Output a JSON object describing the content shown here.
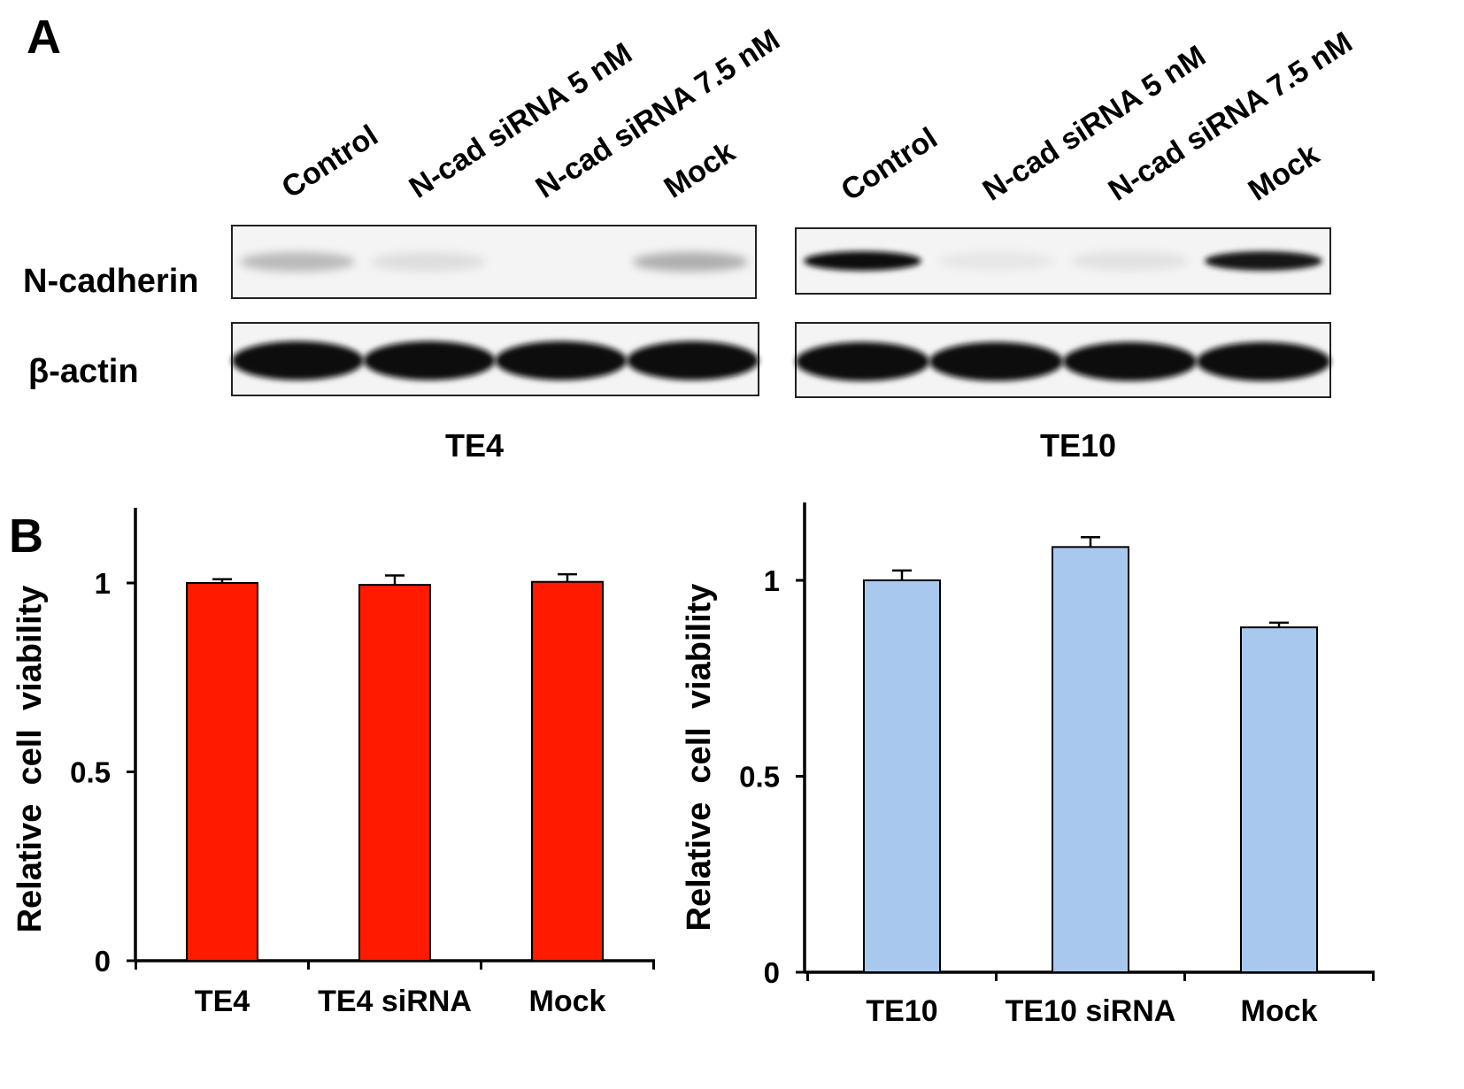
{
  "panel_a": {
    "letter": "A",
    "row_labels": [
      "N-cadherin",
      "β-actin"
    ],
    "blots": [
      {
        "cell_line": "TE4",
        "lanes": [
          "Control",
          "N-cad siRNA 5 nM",
          "N-cad siRNA 7.5 nM",
          "Mock"
        ],
        "n_cadherin_intensity": [
          0.25,
          0.1,
          0.0,
          0.3
        ],
        "beta_actin_intensity": [
          1.0,
          1.0,
          1.0,
          1.0
        ]
      },
      {
        "cell_line": "TE10",
        "lanes": [
          "Control",
          "N-cad siRNA 5 nM",
          "N-cad siRNA 7.5 nM",
          "Mock"
        ],
        "n_cadherin_intensity": [
          1.0,
          0.06,
          0.08,
          0.95
        ],
        "beta_actin_intensity": [
          1.0,
          1.0,
          1.0,
          1.0
        ]
      }
    ]
  },
  "panel_b": {
    "letter": "B"
  },
  "chart_data": [
    {
      "type": "bar",
      "categories": [
        "TE4",
        "TE4 siRNA",
        "Mock"
      ],
      "values": [
        1.0,
        0.995,
        1.003
      ],
      "errors": [
        0.01,
        0.025,
        0.02
      ],
      "ylabel": "Relative  cell  viability",
      "ylim": [
        0,
        1.2
      ],
      "yticks": [
        0,
        0.5,
        1
      ],
      "ytick_labels": [
        "0",
        "0.5",
        "1"
      ],
      "color": "#ff1a00",
      "grid": false
    },
    {
      "type": "bar",
      "categories": [
        "TE10",
        "TE10 siRNA",
        "Mock"
      ],
      "values": [
        1.0,
        1.085,
        0.88
      ],
      "errors": [
        0.025,
        0.025,
        0.012
      ],
      "ylabel": "Relative  cell  viability",
      "ylim": [
        0,
        1.2
      ],
      "yticks": [
        0,
        0.5,
        1
      ],
      "ytick_labels": [
        "0",
        "0.5",
        "1"
      ],
      "color": "#a8c8ee",
      "grid": false
    }
  ]
}
